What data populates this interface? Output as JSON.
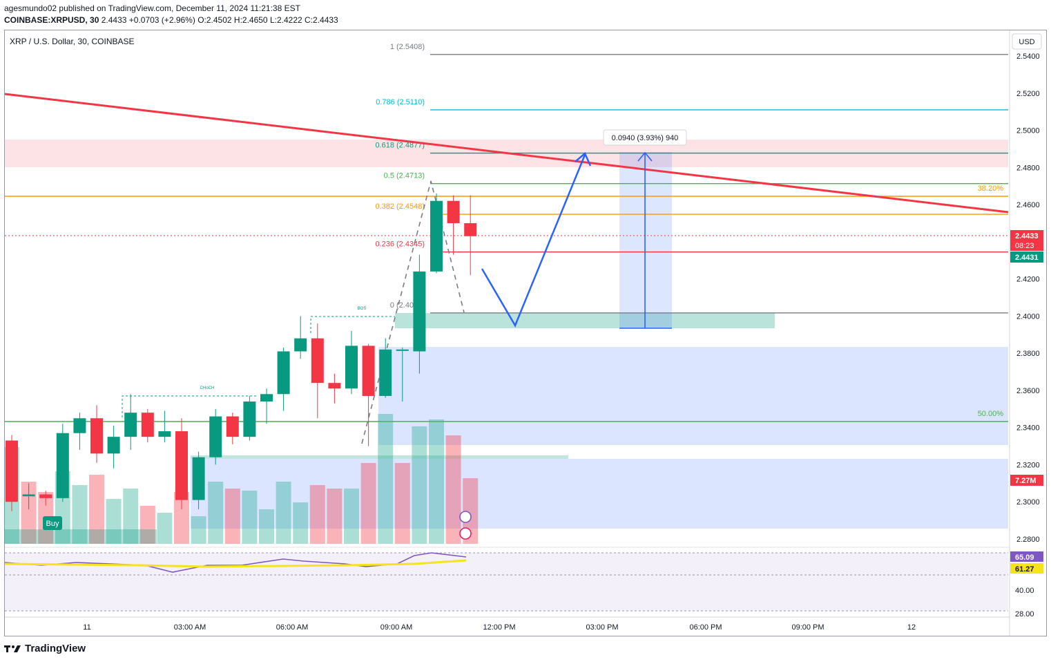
{
  "header": {
    "published_line": "agesmundo02 published on TradingView.com, December 11, 2024 11:21:38 EST",
    "symbol_line": "COINBASE:XRPUSD, 30",
    "last": "2.4433",
    "change": "+0.0703 (+2.96%)",
    "o_label": "O:",
    "o": "2.4502",
    "h_label": "H:",
    "h": "2.4650",
    "l_label": "L:",
    "l": "2.4222",
    "c_label": "C:",
    "c": "2.4433"
  },
  "chart_title": "XRP / U.S. Dollar, 30, COINBASE",
  "currency_button": "USD",
  "footer": {
    "brand": "TradingView"
  },
  "colors": {
    "up": "#089981",
    "down": "#f23645",
    "fib_0618": "#22ab94",
    "trend": "#f23645",
    "arrow": "#2962ff"
  },
  "chart_data": {
    "type": "candlestick",
    "ylim": [
      2.275,
      2.545
    ],
    "price_ticks": [
      "2.5400",
      "2.5200",
      "2.5000",
      "2.4800",
      "2.4600",
      "2.4400",
      "2.4200",
      "2.4000",
      "2.3800",
      "2.3600",
      "2.3400",
      "2.3200",
      "2.3000",
      "2.2800"
    ],
    "time_ticks": [
      "11",
      "03:00 AM",
      "06:00 AM",
      "09:00 AM",
      "12:00 PM",
      "03:00 PM",
      "06:00 PM",
      "09:00 PM",
      "12"
    ],
    "candles": [
      {
        "o": 2.333,
        "h": 2.336,
        "l": 2.295,
        "c": 2.3
      },
      {
        "o": 2.303,
        "h": 2.31,
        "l": 2.296,
        "c": 2.304
      },
      {
        "o": 2.304,
        "h": 2.306,
        "l": 2.298,
        "c": 2.302
      },
      {
        "o": 2.302,
        "h": 2.342,
        "l": 2.3,
        "c": 2.337
      },
      {
        "o": 2.337,
        "h": 2.348,
        "l": 2.328,
        "c": 2.345
      },
      {
        "o": 2.345,
        "h": 2.352,
        "l": 2.321,
        "c": 2.326
      },
      {
        "o": 2.326,
        "h": 2.341,
        "l": 2.318,
        "c": 2.335
      },
      {
        "o": 2.335,
        "h": 2.358,
        "l": 2.328,
        "c": 2.348
      },
      {
        "o": 2.348,
        "h": 2.35,
        "l": 2.332,
        "c": 2.335
      },
      {
        "o": 2.335,
        "h": 2.349,
        "l": 2.332,
        "c": 2.338
      },
      {
        "o": 2.338,
        "h": 2.345,
        "l": 2.296,
        "c": 2.301
      },
      {
        "o": 2.301,
        "h": 2.327,
        "l": 2.296,
        "c": 2.324
      },
      {
        "o": 2.324,
        "h": 2.35,
        "l": 2.32,
        "c": 2.346
      },
      {
        "o": 2.346,
        "h": 2.348,
        "l": 2.331,
        "c": 2.335
      },
      {
        "o": 2.335,
        "h": 2.357,
        "l": 2.333,
        "c": 2.354
      },
      {
        "o": 2.354,
        "h": 2.361,
        "l": 2.342,
        "c": 2.358
      },
      {
        "o": 2.358,
        "h": 2.383,
        "l": 2.349,
        "c": 2.381
      },
      {
        "o": 2.381,
        "h": 2.4,
        "l": 2.377,
        "c": 2.388
      },
      {
        "o": 2.388,
        "h": 2.396,
        "l": 2.345,
        "c": 2.364
      },
      {
        "o": 2.364,
        "h": 2.369,
        "l": 2.353,
        "c": 2.361
      },
      {
        "o": 2.361,
        "h": 2.392,
        "l": 2.358,
        "c": 2.384
      },
      {
        "o": 2.384,
        "h": 2.385,
        "l": 2.33,
        "c": 2.357
      },
      {
        "o": 2.357,
        "h": 2.388,
        "l": 2.356,
        "c": 2.382
      },
      {
        "o": 2.382,
        "h": 2.383,
        "l": 2.354,
        "c": 2.382
      },
      {
        "o": 2.381,
        "h": 2.433,
        "l": 2.369,
        "c": 2.424
      },
      {
        "o": 2.424,
        "h": 2.466,
        "l": 2.423,
        "c": 2.462
      },
      {
        "o": 2.462,
        "h": 2.465,
        "l": 2.433,
        "c": 2.45
      },
      {
        "o": 2.45,
        "h": 2.465,
        "l": 2.422,
        "c": 2.443
      }
    ],
    "volume_label": "7.27M",
    "last_price_label": "2.4433",
    "countdown_label": "08:23",
    "prev_close_label": "2.4431",
    "fib_levels": [
      {
        "label": "1 (2.5408)",
        "price": 2.5408,
        "color": "#787b86"
      },
      {
        "label": "0.786 (2.5110)",
        "price": 2.511,
        "color": "#00bcd4"
      },
      {
        "label": "0.618 (2.4877)",
        "price": 2.4877,
        "color": "#089981"
      },
      {
        "label": "0.5 (2.4713)",
        "price": 2.4713,
        "color": "#4caf50"
      },
      {
        "label": "0.382 (2.4548)",
        "price": 2.4548,
        "color": "#ff9800"
      },
      {
        "label": "0.236 (2.4345)",
        "price": 2.4345,
        "color": "#f23645"
      },
      {
        "label": "0 (2.4017)",
        "price": 2.4017,
        "color": "#787b86"
      }
    ],
    "annotations": {
      "pct_38": "38.20%",
      "pct_50": "50.00%",
      "measure": "0.0940 (3.93%) 940",
      "bos": "BOS",
      "choch": "CHoCH",
      "buy": "Buy"
    },
    "rsi": {
      "ticks": [
        "40.00",
        "28.00"
      ],
      "value": "65.09",
      "ma": "61.27"
    }
  }
}
